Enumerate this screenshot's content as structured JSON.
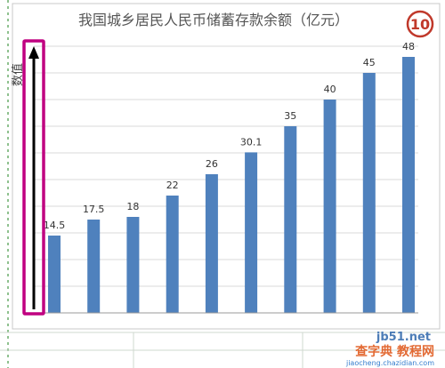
{
  "chart_data": {
    "type": "bar",
    "title": "我国城乡居民人民币储蓄存款余额（亿元）",
    "ylabel": "数值",
    "xlabel": "",
    "categories": [
      "",
      "",
      "",
      "",
      "",
      "",
      "",
      "",
      "",
      ""
    ],
    "values": [
      14.5,
      17.5,
      18,
      22,
      26,
      30.1,
      35,
      40,
      45,
      48
    ],
    "data_labels": [
      "14.5",
      "17.5",
      "18",
      "22",
      "26",
      "30.1",
      "35",
      "40",
      "45",
      "48"
    ],
    "ylim": [
      0,
      50
    ],
    "grid": true,
    "legend": "none"
  },
  "badge": {
    "text": "10"
  },
  "watermark": {
    "site": "jb51.net",
    "brand": "查字典 教程网",
    "url": "jiaocheng.chazidian.com"
  },
  "colors": {
    "bar": "#4F81BD",
    "grid": "#D9D9D9",
    "highlight": "#C00080",
    "badge": "#C0392B",
    "sheet_line": "#CFD8CF"
  }
}
